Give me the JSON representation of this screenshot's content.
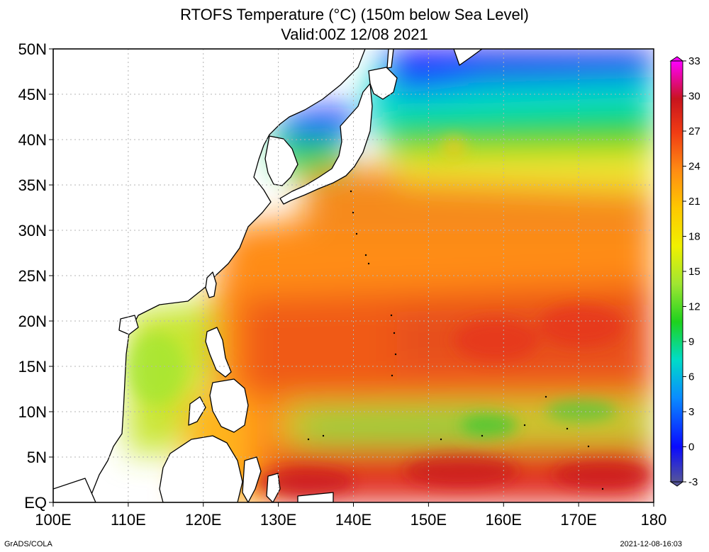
{
  "title": {
    "line1": "RTOFS Temperature (°C) (150m below Sea Level)",
    "line2": "Valid:00Z 12/08 2021"
  },
  "map": {
    "lat_labels": [
      "50N",
      "45N",
      "40N",
      "35N",
      "30N",
      "25N",
      "20N",
      "15N",
      "10N",
      "5N",
      "EQ"
    ],
    "lat_values": [
      50,
      45,
      40,
      35,
      30,
      25,
      20,
      15,
      10,
      5,
      0
    ],
    "lon_labels": [
      "100E",
      "110E",
      "120E",
      "130E",
      "140E",
      "150E",
      "160E",
      "170E",
      "180"
    ],
    "lon_values": [
      100,
      110,
      120,
      130,
      140,
      150,
      160,
      170,
      180
    ],
    "gridlines": true
  },
  "colorbar": {
    "labels": [
      "33",
      "30",
      "27",
      "24",
      "21",
      "18",
      "15",
      "12",
      "9",
      "6",
      "3",
      "0",
      "-3"
    ],
    "colors": [
      "#ff00ff",
      "#e8006a",
      "#c8141e",
      "#f03c14",
      "#ff8c14",
      "#ffc800",
      "#f0f000",
      "#a0e632",
      "#1ed21e",
      "#00dcc8",
      "#0a8cff",
      "#0a0aff",
      "#555599"
    ]
  },
  "footer": {
    "left": "GrADS/COLA",
    "right": "2021-12-08-16:03"
  }
}
